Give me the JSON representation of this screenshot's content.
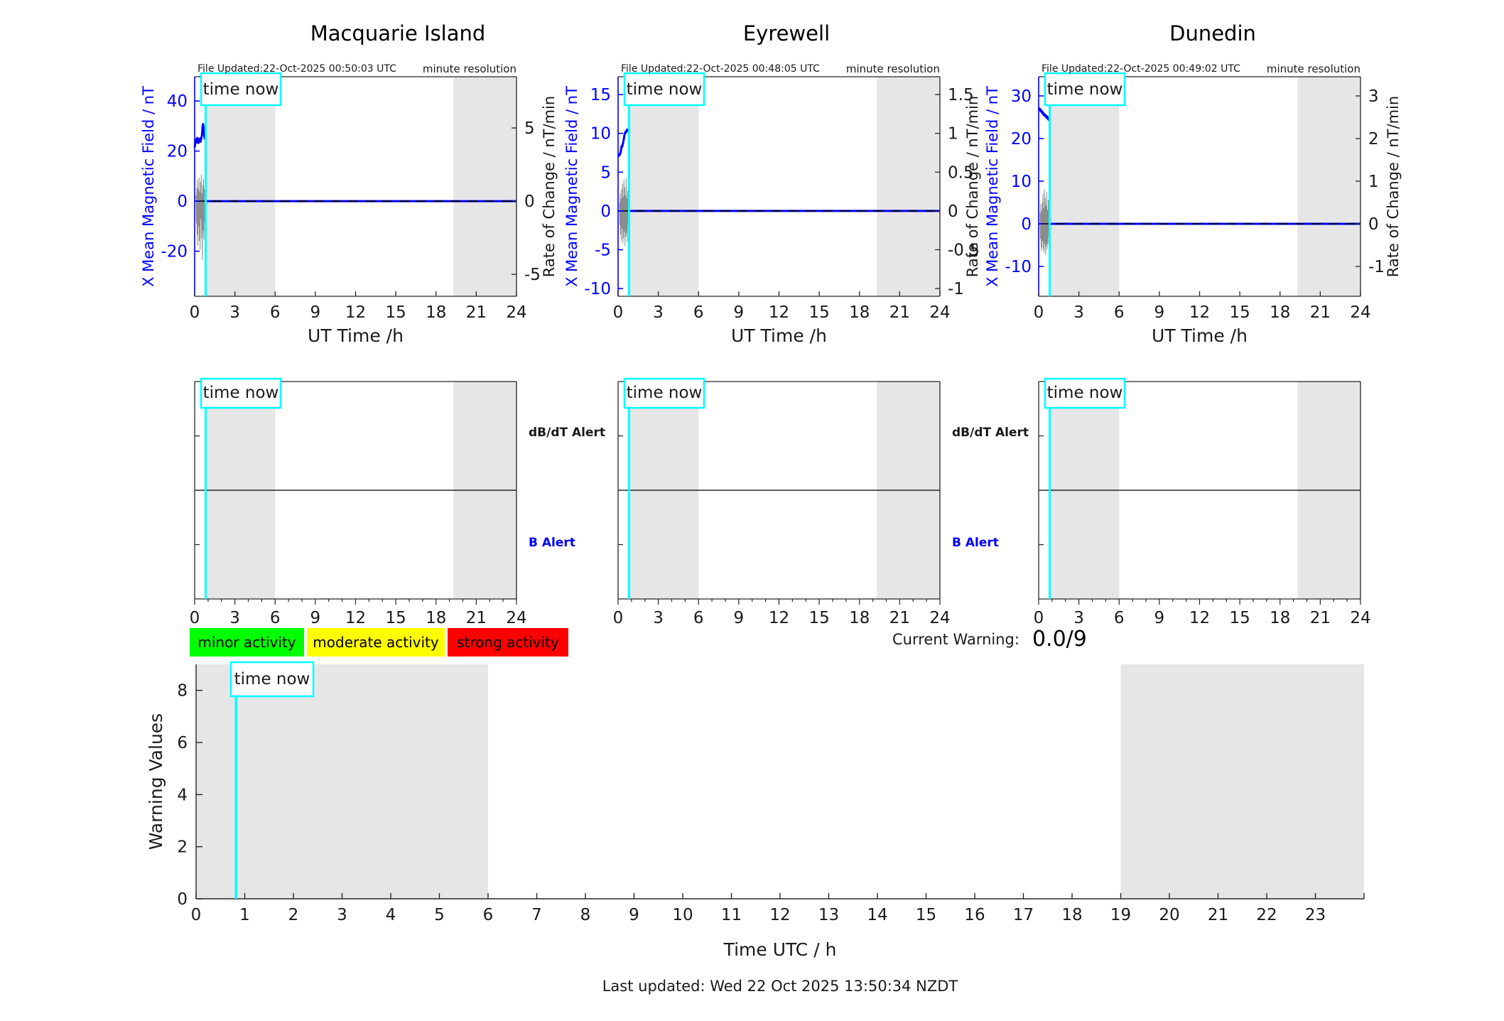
{
  "chart_data": {
    "type": "line",
    "stations": [
      {
        "title": "Macquarie Island",
        "file_updated": "File Updated:22-Oct-2025 00:50:03 UTC",
        "resolution_note": "minute resolution",
        "time_now": {
          "label": "time now",
          "hour": 0.82
        },
        "night_regions": [
          [
            0.82,
            6
          ],
          [
            19.3,
            24
          ]
        ],
        "xaxis": {
          "label": "UT Time /h",
          "lim": [
            0,
            24
          ],
          "ticks": [
            0,
            3,
            6,
            9,
            12,
            15,
            18,
            21,
            24
          ]
        },
        "field": {
          "ylabel": "X Mean Magnetic Field / nT",
          "ylim": [
            -38,
            49.7
          ],
          "ticks": [
            40,
            20,
            0,
            -20
          ],
          "x0": 0,
          "x1": 0.82,
          "values": [
            21.5,
            23.2,
            24.6,
            23.4,
            24.8,
            25.3,
            23.9,
            23.2,
            24.1,
            25.0,
            24.3,
            23.7,
            24.5,
            25.6,
            26.3,
            29.5,
            30.8,
            29.2,
            26.6,
            25.1,
            25.7,
            24.2
          ],
          "flat_value_after_now": 0
        },
        "rate": {
          "ylabel": "Rate of Change / nT/min",
          "ylim": [
            -6.5,
            8.5
          ],
          "ticks": [
            5,
            0,
            -5
          ],
          "x0": 0.1,
          "x1": 0.8,
          "values": [
            0.4,
            -1.5,
            0.9,
            -2.3,
            1.4,
            -3.0,
            0.8,
            -1.7,
            1.6,
            -2.7,
            0.6,
            -3.3,
            1.3,
            -1.2,
            1.8,
            -2.5,
            0.5,
            -4.0,
            1.1,
            -2.0,
            1.5,
            -2.6,
            0.8,
            -1.4,
            1.0,
            -0.7
          ]
        },
        "alert_panel": {
          "dbdt_label": "dB/dT Alert",
          "b_label": "B Alert",
          "show_labels": true
        }
      },
      {
        "title": "Eyrewell",
        "file_updated": "File Updated:22-Oct-2025 00:48:05 UTC",
        "resolution_note": "minute resolution",
        "time_now": {
          "label": "time now",
          "hour": 0.82
        },
        "night_regions": [
          [
            0.82,
            6
          ],
          [
            19.3,
            24
          ]
        ],
        "xaxis": {
          "label": "UT Time /h",
          "lim": [
            0,
            24
          ],
          "ticks": [
            0,
            3,
            6,
            9,
            12,
            15,
            18,
            21,
            24
          ]
        },
        "field": {
          "ylabel": "X Mean Magnetic Field / nT",
          "ylim": [
            -11,
            17.3
          ],
          "ticks": [
            15,
            10,
            5,
            0,
            -5,
            -10
          ],
          "x0": 0,
          "x1": 0.82,
          "values": [
            7.0,
            7.1,
            7.3,
            7.2,
            7.4,
            7.6,
            8.0,
            8.4,
            8.3,
            8.6,
            8.9,
            9.3,
            9.7,
            10.0,
            10.2,
            10.1,
            10.3,
            10.5,
            10.4,
            10.3,
            10.4,
            10.2
          ],
          "flat_value_after_now": 0
        },
        "rate": {
          "ylabel": "Rate of Change / nT/min",
          "ylim": [
            -1.1,
            1.73
          ],
          "ticks": [
            1.5,
            1,
            0.5,
            0,
            -0.5,
            -1
          ],
          "x0": 0.1,
          "x1": 0.8,
          "values": [
            0.1,
            -0.18,
            0.22,
            -0.3,
            0.15,
            -0.38,
            0.28,
            -0.22,
            0.35,
            -0.42,
            0.18,
            -0.35,
            0.4,
            -0.26,
            0.3,
            -0.45,
            0.2,
            -0.33,
            0.42,
            -0.28,
            0.16,
            -0.4,
            0.26,
            -0.15,
            0.34,
            -0.2
          ]
        },
        "alert_panel": {
          "dbdt_label": "dB/dT Alert",
          "b_label": "B Alert",
          "show_labels": true
        }
      },
      {
        "title": "Dunedin",
        "file_updated": "File Updated:22-Oct-2025 00:49:02 UTC",
        "resolution_note": "minute resolution",
        "time_now": {
          "label": "time now",
          "hour": 0.82
        },
        "night_regions": [
          [
            0.82,
            6
          ],
          [
            19.3,
            24
          ]
        ],
        "xaxis": {
          "label": "UT Time /h",
          "lim": [
            0,
            24
          ],
          "ticks": [
            0,
            3,
            6,
            9,
            12,
            15,
            18,
            21,
            24
          ]
        },
        "field": {
          "ylabel": "X Mean Magnetic Field / nT",
          "ylim": [
            -17,
            34.5
          ],
          "ticks": [
            30,
            20,
            10,
            0,
            -10
          ],
          "x0": 0,
          "x1": 0.82,
          "values": [
            26.9,
            27.1,
            26.7,
            26.9,
            26.4,
            26.6,
            26.1,
            26.3,
            25.8,
            26.0,
            25.5,
            25.7,
            25.3,
            25.5,
            25.1,
            24.9,
            25.2,
            24.7,
            24.9,
            24.4,
            24.6,
            24.0
          ],
          "flat_value_after_now": 0
        },
        "rate": {
          "ylabel": "Rate of Change / nT/min",
          "ylim": [
            -1.7,
            3.45
          ],
          "ticks": [
            3,
            2,
            1,
            0,
            -1
          ],
          "x0": 0.1,
          "x1": 0.8,
          "values": [
            0.25,
            -0.35,
            0.45,
            -0.55,
            0.3,
            -0.62,
            0.5,
            -0.4,
            0.7,
            -0.58,
            0.36,
            -0.66,
            0.8,
            -0.46,
            0.6,
            -0.72,
            0.42,
            -0.52,
            0.74,
            -0.6,
            0.32,
            -0.46,
            0.56,
            -0.3,
            0.4,
            -0.26
          ]
        },
        "alert_panel": {
          "dbdt_label": "dB/dT Alert",
          "b_label": "B Alert",
          "show_labels": false
        }
      }
    ],
    "alert_legend": [
      {
        "label": "minor activity",
        "color": "#00ff00"
      },
      {
        "label": "moderate activity",
        "color": "#ffff00"
      },
      {
        "label": "strong activity",
        "color": "#ff0000"
      }
    ],
    "current_warning": {
      "label": "Current Warning:",
      "value": "0.0/9"
    },
    "warning_chart": {
      "ylabel": "Warning Values",
      "xlabel": "Time UTC / h",
      "ylim": [
        0,
        9
      ],
      "yticks": [
        0,
        2,
        4,
        6,
        8
      ],
      "xlim": [
        0,
        24
      ],
      "xticks": [
        0,
        1,
        2,
        3,
        4,
        5,
        6,
        7,
        8,
        9,
        10,
        11,
        12,
        13,
        14,
        15,
        16,
        17,
        18,
        19,
        20,
        21,
        22,
        23
      ],
      "night_regions": [
        [
          0,
          6
        ],
        [
          19,
          24
        ]
      ],
      "time_now": {
        "label": "time now",
        "hour": 0.82
      },
      "series_values": []
    }
  },
  "colors": {
    "field": "#0000ff",
    "rate": "#8c8c8c",
    "time_now": "#00ffff",
    "night": "#e6e6e6",
    "axis": "#262626",
    "b_alert_text": "#0000ff"
  },
  "footer": {
    "last_updated": "Last updated: Wed 22 Oct 2025 13:50:34 NZDT"
  }
}
